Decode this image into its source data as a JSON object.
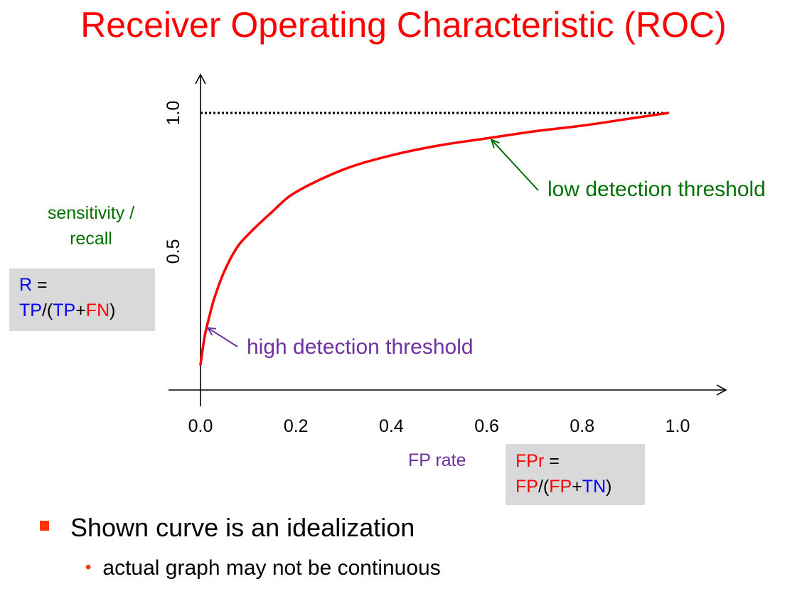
{
  "title": "Receiver Operating Characteristic (ROC)",
  "ylabel": {
    "line1": "sensitivity /",
    "line2": "recall"
  },
  "xlabel": "FP rate",
  "recall_formula": {
    "line1": [
      {
        "text": "R",
        "color": "blue"
      },
      {
        "text": " =",
        "color": "black"
      }
    ],
    "line2": [
      {
        "text": "TP",
        "color": "blue"
      },
      {
        "text": "/(",
        "color": "black"
      },
      {
        "text": "TP",
        "color": "blue"
      },
      {
        "text": "+",
        "color": "black"
      },
      {
        "text": "FN",
        "color": "red"
      },
      {
        "text": ")",
        "color": "black"
      }
    ]
  },
  "fpr_formula": {
    "line1": [
      {
        "text": "FPr",
        "color": "red"
      },
      {
        "text": " =",
        "color": "black"
      }
    ],
    "line2": [
      {
        "text": "FP",
        "color": "red"
      },
      {
        "text": "/(",
        "color": "black"
      },
      {
        "text": "FP",
        "color": "red"
      },
      {
        "text": "+",
        "color": "black"
      },
      {
        "text": "TN",
        "color": "blue"
      },
      {
        "text": ")",
        "color": "black"
      }
    ]
  },
  "annotations": {
    "low": {
      "text": "low detection threshold",
      "color": "#007000"
    },
    "high": {
      "text": "high detection threshold",
      "color": "#7030a0"
    }
  },
  "bullets": {
    "main": "Shown curve is an idealization",
    "sub": "actual graph may not be continuous",
    "bullet_color": "#ff3300"
  },
  "chart_data": {
    "type": "line",
    "xlim": [
      0,
      1
    ],
    "ylim": [
      0,
      1
    ],
    "x_ticks": [
      "0.0",
      "0.2",
      "0.4",
      "0.6",
      "0.8",
      "1.0"
    ],
    "y_ticks": [
      "0.5",
      "1.0"
    ],
    "grid": false,
    "series": [
      {
        "color": "#ff0000",
        "x": [
          0.0,
          0.005,
          0.01,
          0.02,
          0.03,
          0.05,
          0.075,
          0.1,
          0.15,
          0.2,
          0.3,
          0.4,
          0.5,
          0.6,
          0.7,
          0.8,
          0.9,
          0.98
        ],
        "y": [
          0.09,
          0.15,
          0.2,
          0.27,
          0.33,
          0.42,
          0.5,
          0.55,
          0.63,
          0.7,
          0.78,
          0.83,
          0.865,
          0.89,
          0.915,
          0.935,
          0.96,
          0.98
        ]
      }
    ],
    "reference_line": {
      "y": 0.98,
      "x": [
        0,
        0.98
      ],
      "style": "dotted"
    },
    "annotations": [
      {
        "text": "low detection threshold",
        "point": [
          0.61,
          0.885
        ]
      },
      {
        "text": "high detection threshold",
        "point": [
          0.015,
          0.22
        ]
      }
    ]
  }
}
